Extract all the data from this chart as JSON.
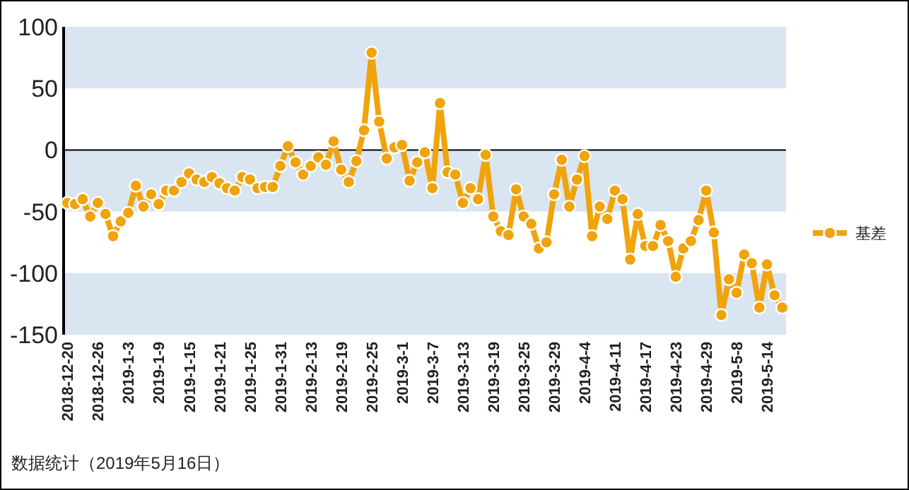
{
  "chart_data": {
    "type": "line",
    "categories": [
      "2018-12-20",
      null,
      null,
      null,
      "2018-12-26",
      null,
      null,
      null,
      "2019-1-3",
      null,
      null,
      null,
      "2019-1-9",
      null,
      null,
      null,
      "2019-1-15",
      null,
      null,
      null,
      "2019-1-21",
      null,
      null,
      null,
      "2019-1-25",
      null,
      null,
      null,
      "2019-1-31",
      null,
      null,
      null,
      "2019-2-13",
      null,
      null,
      null,
      "2019-2-19",
      null,
      null,
      null,
      "2019-2-25",
      null,
      null,
      null,
      "2019-3-1",
      null,
      null,
      null,
      "2019-3-7",
      null,
      null,
      null,
      "2019-3-13",
      null,
      null,
      null,
      "2019-3-19",
      null,
      null,
      null,
      "2019-3-25",
      null,
      null,
      null,
      "2019-3-29",
      null,
      null,
      null,
      "2019-4-4",
      null,
      null,
      null,
      "2019-4-11",
      null,
      null,
      null,
      "2019-4-17",
      null,
      null,
      null,
      "2019-4-23",
      null,
      null,
      null,
      "2019-4-29",
      null,
      null,
      null,
      "2019-5-8",
      null,
      null,
      null,
      "2019-5-14",
      null,
      null
    ],
    "series": [
      {
        "name": "基差",
        "color": "#f0a30a",
        "values": [
          -43,
          -44,
          -40,
          -54,
          -43,
          -52,
          -70,
          -58,
          -51,
          -29,
          -46,
          -36,
          -44,
          -33,
          -33,
          -26,
          -19,
          -24,
          -26,
          -22,
          -27,
          -31,
          -33,
          -22,
          -24,
          -31,
          -30,
          -30,
          -13,
          3,
          -10,
          -20,
          -13,
          -6,
          -12,
          7,
          -16,
          -26,
          -9,
          16,
          79,
          23,
          -7,
          2,
          4,
          -25,
          -10,
          -2,
          -31,
          38,
          -18,
          -20,
          -43,
          -31,
          -40,
          -4,
          -54,
          -66,
          -69,
          -32,
          -54,
          -60,
          -80,
          -75,
          -36,
          -8,
          -46,
          -24,
          -5,
          -70,
          -46,
          -56,
          -33,
          -40,
          -89,
          -52,
          -78,
          -78,
          -61,
          -74,
          -103,
          -80,
          -74,
          -57,
          -33,
          -67,
          -134,
          -105,
          -116,
          -85,
          -92,
          -128,
          -93,
          -118,
          -128
        ]
      }
    ],
    "ylim": [
      -150,
      100
    ],
    "yticks": [
      -150,
      -100,
      -50,
      0,
      50,
      100
    ],
    "grid": "y",
    "legend": "right",
    "marker": "circle",
    "line_style": "solid",
    "annotations": [
      "数据统计（2019年5月16日）"
    ]
  }
}
